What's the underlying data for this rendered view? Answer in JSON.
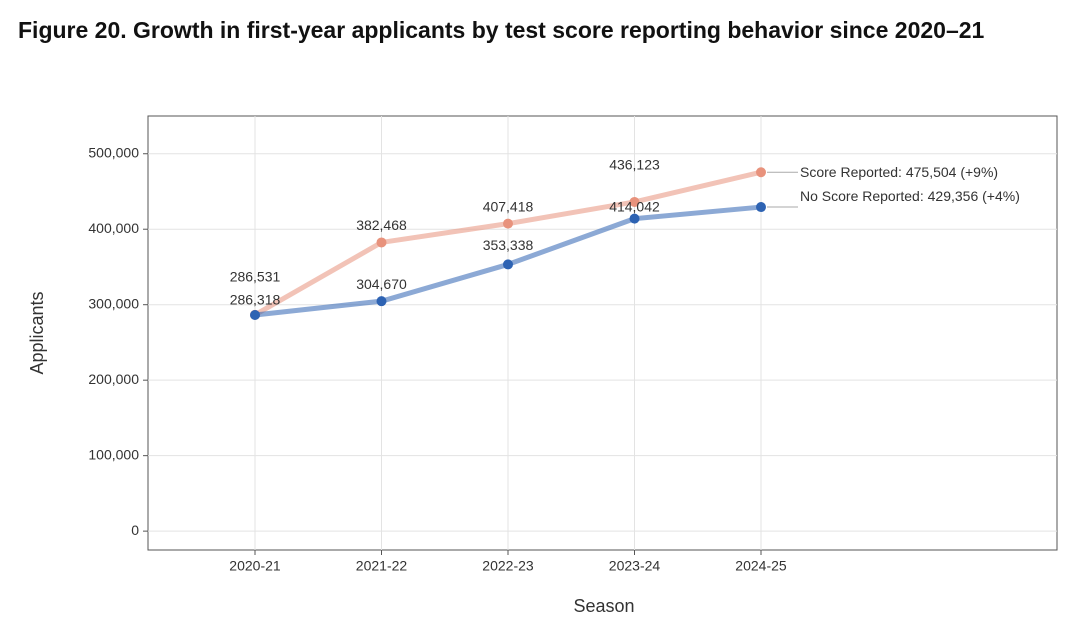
{
  "chart_data": {
    "type": "line",
    "title": "Figure 20. Growth in first-year applicants by test score reporting behavior since 2020–21",
    "x_label": "Season",
    "y_label": "Applicants",
    "categories": [
      "2020-21",
      "2021-22",
      "2022-23",
      "2023-24",
      "2024-25"
    ],
    "series": [
      {
        "name": "Score Reported: 475,504 (+9%)",
        "color": "#e8927c",
        "values": [
          286531,
          382468,
          407418,
          436123,
          475504
        ],
        "value_labels": [
          "286,531",
          "382,468",
          "407,418",
          "436,123",
          null
        ]
      },
      {
        "name": "No Score Reported: 429,356 (+4%)",
        "color": "#2e63b3",
        "values": [
          286318,
          304670,
          353338,
          414042,
          429356
        ],
        "value_labels": [
          "286,318",
          "304,670",
          "353,338",
          "414,042",
          null
        ]
      }
    ],
    "ylim": [
      -25000,
      550000
    ],
    "yticks": [
      0,
      {
        "value": 100000,
        "label": "100,000"
      },
      {
        "value": 200000,
        "label": "200,000"
      },
      {
        "value": 300000,
        "label": "300,000"
      },
      {
        "value": 400000,
        "label": "400,000"
      },
      {
        "value": 500000,
        "label": "500,000"
      }
    ],
    "grid": true
  }
}
